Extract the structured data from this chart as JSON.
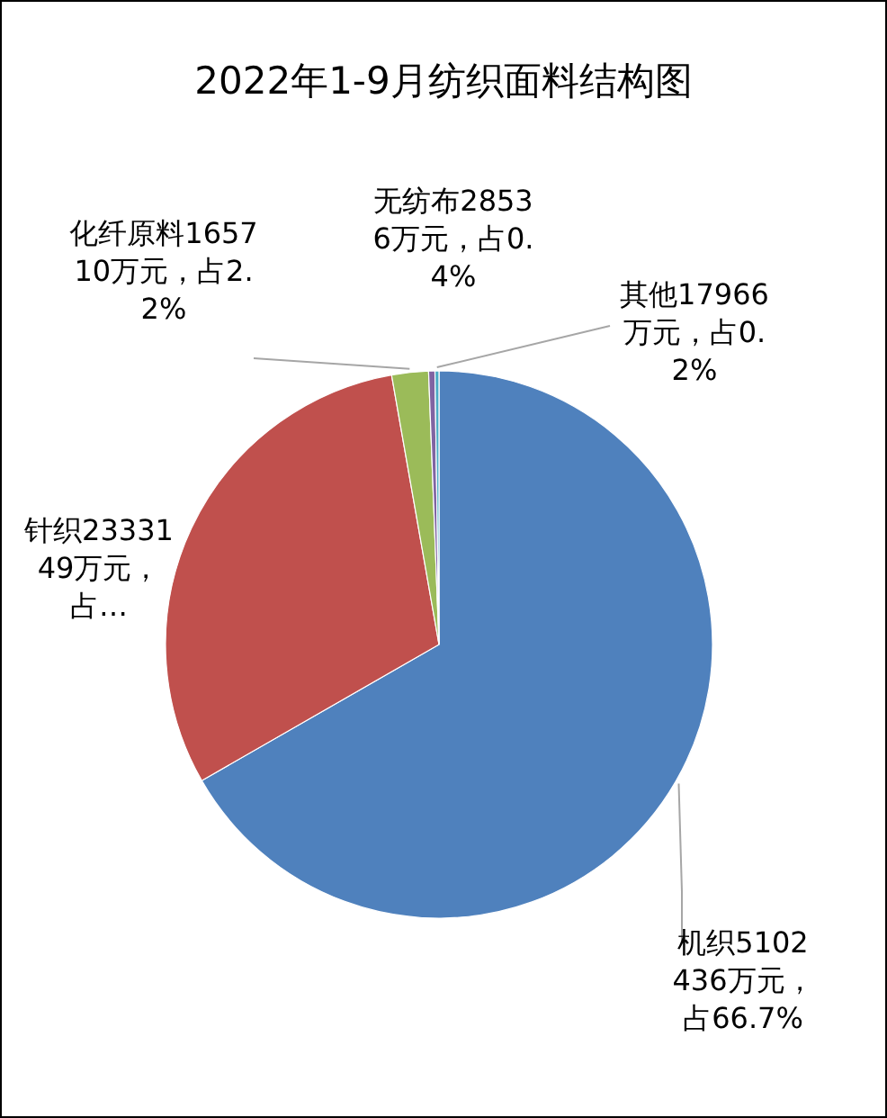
{
  "chart_data": {
    "type": "pie",
    "title": "2022年1-9月纺织面料结构图",
    "categories": [
      "机织",
      "针织",
      "化纤原料",
      "无纺布",
      "其他"
    ],
    "values": [
      5102436,
      2333149,
      165710,
      28536,
      17966
    ],
    "colors": [
      "#4f81bd",
      "#c0504d",
      "#9bbb59",
      "#8064a2",
      "#4bacc6"
    ],
    "value_labels": [
      "5102436万元，占66.7%",
      "2333149万元，占…",
      "165710万元，占2.2%",
      "28536万元，占0.4%",
      "17966万元，占0.2%"
    ]
  }
}
